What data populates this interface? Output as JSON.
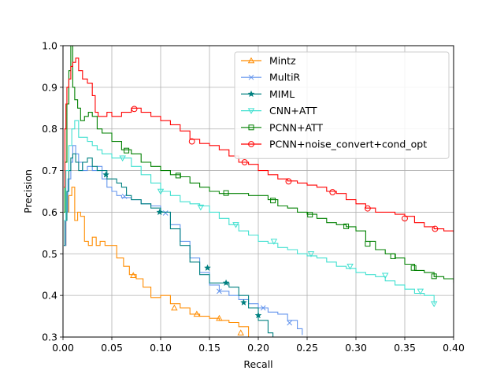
{
  "chart_data": {
    "type": "line",
    "title": "",
    "xlabel": "Recall",
    "ylabel": "Precision",
    "xlim": [
      0.0,
      0.4
    ],
    "ylim": [
      0.3,
      1.0
    ],
    "xticks": [
      "0.00",
      "0.05",
      "0.10",
      "0.15",
      "0.20",
      "0.25",
      "0.30",
      "0.35",
      "0.40"
    ],
    "yticks": [
      "0.3",
      "0.4",
      "0.5",
      "0.6",
      "0.7",
      "0.8",
      "0.9",
      "1.0"
    ],
    "grid": true,
    "legend_position": "top-right",
    "series": [
      {
        "name": "Mintz",
        "color": "#ff8c00",
        "marker": "triangle-up",
        "x": [
          0.001,
          0.003,
          0.006,
          0.009,
          0.012,
          0.015,
          0.018,
          0.022,
          0.026,
          0.03,
          0.034,
          0.038,
          0.043,
          0.048,
          0.055,
          0.062,
          0.068,
          0.075,
          0.082,
          0.09,
          0.1,
          0.11,
          0.12,
          0.13,
          0.14,
          0.15,
          0.16,
          0.17,
          0.18,
          0.19
        ],
        "y": [
          0.52,
          0.6,
          0.64,
          0.66,
          0.58,
          0.6,
          0.59,
          0.53,
          0.52,
          0.54,
          0.52,
          0.53,
          0.52,
          0.52,
          0.49,
          0.47,
          0.45,
          0.44,
          0.42,
          0.395,
          0.4,
          0.38,
          0.37,
          0.355,
          0.35,
          0.345,
          0.34,
          0.335,
          0.325,
          0.3
        ],
        "marker_x": [
          0.072,
          0.114,
          0.137,
          0.16,
          0.182
        ],
        "marker_y": [
          0.448,
          0.37,
          0.355,
          0.345,
          0.31
        ]
      },
      {
        "name": "MultiR",
        "color": "#6495ed",
        "marker": "x",
        "x": [
          0.001,
          0.003,
          0.005,
          0.008,
          0.01,
          0.013,
          0.016,
          0.02,
          0.025,
          0.03,
          0.035,
          0.04,
          0.045,
          0.05,
          0.055,
          0.06,
          0.07,
          0.08,
          0.09,
          0.1,
          0.11,
          0.12,
          0.13,
          0.14,
          0.15,
          0.16,
          0.17,
          0.18,
          0.19,
          0.2,
          0.21,
          0.22,
          0.23,
          0.24,
          0.245
        ],
        "y": [
          0.52,
          0.6,
          0.68,
          0.72,
          0.76,
          0.74,
          0.72,
          0.7,
          0.71,
          0.7,
          0.71,
          0.68,
          0.66,
          0.65,
          0.64,
          0.635,
          0.63,
          0.62,
          0.615,
          0.6,
          0.57,
          0.53,
          0.49,
          0.455,
          0.425,
          0.41,
          0.4,
          0.39,
          0.38,
          0.37,
          0.36,
          0.355,
          0.34,
          0.32,
          0.305
        ],
        "marker_x": [
          0.063,
          0.105,
          0.16,
          0.205,
          0.232
        ],
        "marker_y": [
          0.638,
          0.598,
          0.41,
          0.37,
          0.334
        ]
      },
      {
        "name": "MIML",
        "color": "#008080",
        "marker": "star",
        "x": [
          0.001,
          0.002,
          0.004,
          0.006,
          0.008,
          0.01,
          0.013,
          0.016,
          0.02,
          0.025,
          0.03,
          0.035,
          0.04,
          0.045,
          0.05,
          0.055,
          0.06,
          0.065,
          0.07,
          0.08,
          0.09,
          0.1,
          0.11,
          0.12,
          0.13,
          0.14,
          0.15,
          0.16,
          0.17,
          0.18,
          0.19,
          0.2,
          0.21,
          0.215
        ],
        "y": [
          0.52,
          0.58,
          0.65,
          0.7,
          0.73,
          0.74,
          0.72,
          0.7,
          0.72,
          0.73,
          0.71,
          0.7,
          0.7,
          0.68,
          0.68,
          0.67,
          0.66,
          0.64,
          0.63,
          0.62,
          0.61,
          0.6,
          0.56,
          0.52,
          0.48,
          0.45,
          0.43,
          0.43,
          0.42,
          0.4,
          0.37,
          0.34,
          0.31,
          0.3
        ],
        "marker_x": [
          0.044,
          0.099,
          0.148,
          0.167,
          0.185,
          0.2
        ],
        "marker_y": [
          0.69,
          0.6,
          0.466,
          0.43,
          0.383,
          0.352
        ]
      },
      {
        "name": "CNN+ATT",
        "color": "#40e0d0",
        "marker": "triangle-down",
        "x": [
          0.001,
          0.003,
          0.006,
          0.009,
          0.012,
          0.016,
          0.02,
          0.025,
          0.03,
          0.035,
          0.04,
          0.05,
          0.06,
          0.07,
          0.08,
          0.09,
          0.1,
          0.11,
          0.12,
          0.13,
          0.14,
          0.15,
          0.16,
          0.17,
          0.18,
          0.19,
          0.2,
          0.21,
          0.22,
          0.23,
          0.24,
          0.25,
          0.26,
          0.27,
          0.28,
          0.29,
          0.3,
          0.31,
          0.32,
          0.33,
          0.34,
          0.35,
          0.36,
          0.37,
          0.38
        ],
        "y": [
          0.58,
          0.7,
          0.76,
          0.8,
          0.82,
          0.78,
          0.78,
          0.77,
          0.76,
          0.75,
          0.74,
          0.73,
          0.73,
          0.71,
          0.69,
          0.67,
          0.65,
          0.64,
          0.625,
          0.62,
          0.615,
          0.6,
          0.585,
          0.57,
          0.555,
          0.545,
          0.53,
          0.525,
          0.515,
          0.51,
          0.5,
          0.495,
          0.49,
          0.48,
          0.47,
          0.465,
          0.455,
          0.45,
          0.445,
          0.435,
          0.425,
          0.415,
          0.405,
          0.4,
          0.38
        ],
        "marker_x": [
          0.061,
          0.1,
          0.141,
          0.177,
          0.216,
          0.254,
          0.294,
          0.33,
          0.366,
          0.38
        ],
        "marker_y": [
          0.73,
          0.65,
          0.612,
          0.57,
          0.53,
          0.5,
          0.47,
          0.448,
          0.41,
          0.38
        ]
      },
      {
        "name": "PCNN+ATT",
        "color": "#008000",
        "marker": "square",
        "x": [
          0.001,
          0.002,
          0.004,
          0.006,
          0.008,
          0.01,
          0.012,
          0.015,
          0.018,
          0.022,
          0.026,
          0.03,
          0.035,
          0.04,
          0.05,
          0.06,
          0.07,
          0.08,
          0.09,
          0.1,
          0.11,
          0.12,
          0.13,
          0.14,
          0.15,
          0.16,
          0.17,
          0.18,
          0.19,
          0.2,
          0.21,
          0.22,
          0.23,
          0.24,
          0.25,
          0.26,
          0.27,
          0.28,
          0.29,
          0.3,
          0.31,
          0.32,
          0.33,
          0.34,
          0.35,
          0.36,
          0.37,
          0.38,
          0.39,
          0.4
        ],
        "y": [
          0.6,
          0.72,
          0.86,
          0.94,
          1.0,
          0.9,
          0.87,
          0.85,
          0.82,
          0.83,
          0.84,
          0.83,
          0.8,
          0.79,
          0.77,
          0.75,
          0.74,
          0.72,
          0.71,
          0.7,
          0.69,
          0.685,
          0.67,
          0.66,
          0.65,
          0.645,
          0.645,
          0.645,
          0.64,
          0.64,
          0.63,
          0.615,
          0.61,
          0.6,
          0.595,
          0.585,
          0.575,
          0.57,
          0.565,
          0.555,
          0.53,
          0.51,
          0.5,
          0.49,
          0.475,
          0.46,
          0.455,
          0.445,
          0.44,
          0.43
        ],
        "marker_x": [
          0.065,
          0.118,
          0.167,
          0.215,
          0.253,
          0.29,
          0.312,
          0.338,
          0.359,
          0.38
        ],
        "marker_y": [
          0.748,
          0.688,
          0.646,
          0.628,
          0.594,
          0.566,
          0.524,
          0.494,
          0.466,
          0.446
        ]
      },
      {
        "name": "PCNN+noise_convert+cond_opt",
        "color": "#ff0000",
        "marker": "circle",
        "x": [
          0.001,
          0.002,
          0.003,
          0.004,
          0.006,
          0.008,
          0.01,
          0.013,
          0.016,
          0.02,
          0.025,
          0.03,
          0.033,
          0.036,
          0.04,
          0.045,
          0.05,
          0.06,
          0.07,
          0.08,
          0.09,
          0.1,
          0.11,
          0.12,
          0.13,
          0.14,
          0.15,
          0.16,
          0.17,
          0.18,
          0.19,
          0.2,
          0.21,
          0.22,
          0.23,
          0.24,
          0.25,
          0.26,
          0.27,
          0.28,
          0.29,
          0.3,
          0.31,
          0.32,
          0.33,
          0.34,
          0.35,
          0.36,
          0.37,
          0.38,
          0.39,
          0.4
        ],
        "y": [
          0.66,
          0.8,
          0.86,
          0.9,
          0.92,
          0.95,
          0.96,
          0.97,
          0.94,
          0.92,
          0.91,
          0.88,
          0.84,
          0.83,
          0.83,
          0.84,
          0.83,
          0.84,
          0.85,
          0.84,
          0.83,
          0.82,
          0.81,
          0.795,
          0.775,
          0.765,
          0.76,
          0.75,
          0.735,
          0.72,
          0.715,
          0.7,
          0.69,
          0.68,
          0.675,
          0.67,
          0.665,
          0.66,
          0.65,
          0.645,
          0.63,
          0.62,
          0.61,
          0.6,
          0.6,
          0.595,
          0.59,
          0.575,
          0.565,
          0.56,
          0.555,
          0.55
        ],
        "marker_x": [
          0.073,
          0.132,
          0.186,
          0.231,
          0.276,
          0.312,
          0.35,
          0.381
        ],
        "marker_y": [
          0.848,
          0.77,
          0.72,
          0.674,
          0.648,
          0.609,
          0.585,
          0.56
        ]
      }
    ]
  }
}
